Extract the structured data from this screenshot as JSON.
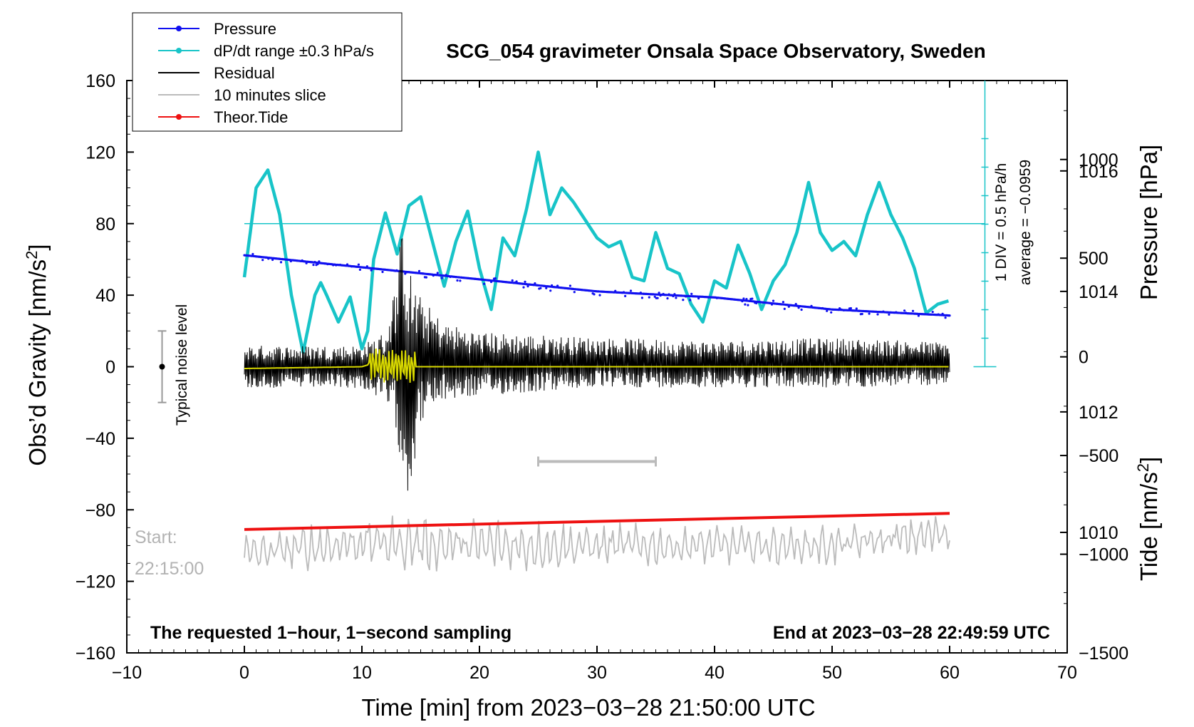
{
  "chart_data": {
    "type": "line",
    "title": "SCG_054 gravimeter Onsala Space Observatory, Sweden",
    "xlabel": "Time [min] from 2023−03−28 21:50:00 UTC",
    "ylabel": "Obs’d Gravity [nm/s",
    "ylabel_sup": "2",
    "ylabel_tail": "]",
    "y2label": "Pressure [hPa]",
    "y3label": "Tide [nm/s",
    "y3label_sup": "2",
    "y3label_tail": "]",
    "xlim": [
      -10,
      70
    ],
    "ylim": [
      -160,
      160
    ],
    "x_ticks": [
      "−10",
      "0",
      "10",
      "20",
      "30",
      "40",
      "50",
      "60",
      "70"
    ],
    "x_tick_values": [
      -10,
      0,
      10,
      20,
      30,
      40,
      50,
      60,
      70
    ],
    "y_ticks": [
      "160",
      "120",
      "80",
      "40",
      "0",
      "−40",
      "−80",
      "−120",
      "−160"
    ],
    "y_tick_values": [
      160,
      120,
      80,
      40,
      0,
      -40,
      -80,
      -120,
      -160
    ],
    "pressure_axis": {
      "range_hpa": [
        1008,
        1017.5
      ],
      "ticks": [
        "1016",
        "1014",
        "1012",
        "1010"
      ],
      "tick_values": [
        1016,
        1014,
        1012,
        1010
      ]
    },
    "tide_axis": {
      "range": [
        -1500,
        1400
      ],
      "ticks": [
        "1000",
        "500",
        "0",
        "−500",
        "−1000",
        "−1500"
      ],
      "tick_values": [
        1000,
        500,
        0,
        -500,
        -1000,
        -1500
      ]
    },
    "legend": {
      "placement": "top-left",
      "entries": [
        {
          "label": "Pressure",
          "color": "#1010f0",
          "marker": "dot"
        },
        {
          "label": "dP/dt range ±0.3 hPa/s",
          "color": "#18c4c8",
          "marker": "dot"
        },
        {
          "label": "Residual",
          "color": "#000000",
          "marker": "none"
        },
        {
          "label": "10 minutes slice",
          "color": "#bbbbbb",
          "marker": "none"
        },
        {
          "label": "Theor.Tide",
          "color": "#ee1111",
          "marker": "dot"
        }
      ]
    },
    "noise_label": "Typical noise level",
    "noise_bar": {
      "center": 0,
      "half_range": 20,
      "x": -7
    },
    "scale_axis": {
      "label1": "1 DIV = 0.5 hPa/h",
      "label2": "average = −0.0959",
      "x": 63
    },
    "start_label": "Start:",
    "start_time": "22:15:00",
    "footer_left": "The requested 1−hour, 1−second sampling",
    "footer_right": "End at 2023−03−28 22:49:59 UTC",
    "slice_marker": {
      "x_start": 25,
      "x_end": 35,
      "y": -53
    },
    "series": [
      {
        "name": "Pressure",
        "units": "hPa",
        "color": "#1010f0",
        "x": [
          0,
          10,
          20,
          30,
          40,
          50,
          60
        ],
        "values": [
          1014.6,
          1014.4,
          1014.2,
          1014.0,
          1013.9,
          1013.7,
          1013.6
        ]
      },
      {
        "name": "dP/dt range ±0.3 hPa/s",
        "units": "nm/s2",
        "color": "#18c4c8",
        "reference_level": 80,
        "x": [
          0,
          1,
          2,
          3,
          4,
          5,
          6,
          6.5,
          7,
          8,
          9,
          10,
          10.5,
          11,
          12,
          13,
          14,
          15,
          16,
          17,
          18,
          19,
          20,
          21,
          22,
          23,
          24,
          25,
          26,
          27,
          28,
          29,
          30,
          31,
          32,
          33,
          34,
          35,
          36,
          37,
          38,
          39,
          40,
          41,
          42,
          43,
          44,
          45,
          46,
          47,
          48,
          49,
          50,
          51,
          52,
          53,
          54,
          55,
          56,
          57,
          58,
          59,
          60
        ],
        "values": [
          50,
          100,
          110,
          85,
          40,
          8,
          40,
          47,
          40,
          25,
          39,
          10,
          20,
          60,
          86,
          63,
          90,
          95,
          70,
          45,
          70,
          87,
          55,
          32,
          72,
          62,
          88,
          120,
          85,
          100,
          92,
          82,
          72,
          67,
          70,
          50,
          48,
          75,
          55,
          52,
          35,
          25,
          48,
          44,
          68,
          52,
          32,
          48,
          57,
          75,
          103,
          75,
          65,
          70,
          62,
          85,
          103,
          85,
          72,
          55,
          30,
          35,
          37
        ]
      },
      {
        "name": "Residual",
        "units": "nm/s2",
        "color": "#000000",
        "x": [
          0,
          10,
          12,
          13,
          13.5,
          14,
          15,
          17,
          20,
          30,
          40,
          50,
          60
        ],
        "values": [
          0,
          0,
          0,
          40,
          75,
          -60,
          25,
          18,
          10,
          15,
          10,
          14,
          12
        ],
        "envelope": [
          12,
          12,
          20,
          45,
          75,
          65,
          35,
          22,
          18,
          14,
          13,
          14,
          12
        ]
      },
      {
        "name": "10 minutes slice",
        "units": "nm/s2",
        "color": "#bbbbbb",
        "baseline": -100,
        "x": [
          0,
          10,
          20,
          30,
          40,
          50,
          60
        ],
        "values": [
          -105,
          -98,
          -100,
          -100,
          -100,
          -100,
          -93
        ],
        "envelope": [
          12,
          15,
          16,
          13,
          11,
          12,
          12
        ]
      },
      {
        "name": "Theor.Tide",
        "units": "nm/s2",
        "color": "#ee1111",
        "x": [
          0,
          60
        ],
        "values": [
          -91,
          -82
        ]
      },
      {
        "name": "Filtered residual",
        "units": "nm/s2",
        "color": "#d8d800",
        "x": [
          0,
          10,
          11,
          12,
          13,
          14,
          15,
          20,
          30,
          40,
          50,
          60
        ],
        "values": [
          -1,
          0,
          2,
          0,
          1,
          0,
          0,
          0,
          0,
          0,
          0,
          0
        ]
      }
    ]
  }
}
